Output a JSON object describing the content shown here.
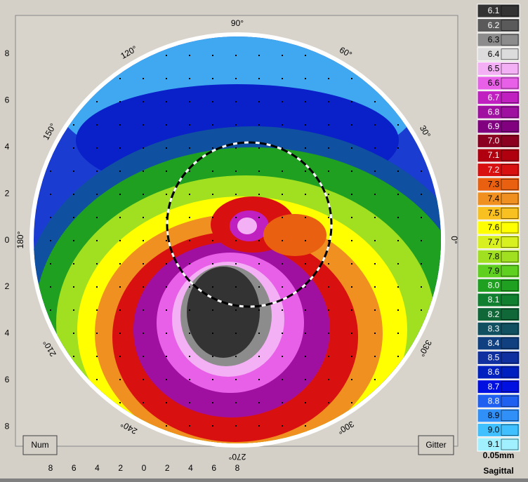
{
  "axes": {
    "x_labels": [
      "8",
      "6",
      "4",
      "2",
      "0",
      "2",
      "4",
      "6",
      "8"
    ],
    "y_labels": [
      "8",
      "6",
      "4",
      "2",
      "0",
      "2",
      "4",
      "6",
      "8"
    ]
  },
  "angles": [
    "90°",
    "60°",
    "30°",
    "0°",
    "330°",
    "300°",
    "270°",
    "240°",
    "210°",
    "180°",
    "150°",
    "120°"
  ],
  "legend": {
    "entries": [
      {
        "label": "6.1",
        "color": "#333333"
      },
      {
        "label": "6.2",
        "color": "#5a5a5a"
      },
      {
        "label": "6.3",
        "color": "#8c8c8c"
      },
      {
        "label": "6.4",
        "color": "#dcdcdc"
      },
      {
        "label": "6.5",
        "color": "#f4b0f4"
      },
      {
        "label": "6.6",
        "color": "#e860e8"
      },
      {
        "label": "6.7",
        "color": "#c020c0"
      },
      {
        "label": "6.8",
        "color": "#a010a0"
      },
      {
        "label": "6.9",
        "color": "#800080"
      },
      {
        "label": "7.0",
        "color": "#8b0020"
      },
      {
        "label": "7.1",
        "color": "#b00010"
      },
      {
        "label": "7.2",
        "color": "#d81010"
      },
      {
        "label": "7.3",
        "color": "#e86010"
      },
      {
        "label": "7.4",
        "color": "#f09020"
      },
      {
        "label": "7.5",
        "color": "#f8c020"
      },
      {
        "label": "7.6",
        "color": "#ffff00"
      },
      {
        "label": "7.7",
        "color": "#d8f020"
      },
      {
        "label": "7.8",
        "color": "#a0e020"
      },
      {
        "label": "7.9",
        "color": "#60d020"
      },
      {
        "label": "8.0",
        "color": "#20a020"
      },
      {
        "label": "8.1",
        "color": "#108030"
      },
      {
        "label": "8.2",
        "color": "#106838"
      },
      {
        "label": "8.3",
        "color": "#105060"
      },
      {
        "label": "8.4",
        "color": "#104080"
      },
      {
        "label": "8.5",
        "color": "#1030a0"
      },
      {
        "label": "8.6",
        "color": "#0020c0"
      },
      {
        "label": "8.7",
        "color": "#0010e0"
      },
      {
        "label": "8.8",
        "color": "#2060f0"
      },
      {
        "label": "8.9",
        "color": "#3090f8"
      },
      {
        "label": "9.0",
        "color": "#40c0ff"
      },
      {
        "label": "9.1",
        "color": "#a0f0ff"
      }
    ],
    "step": "0.05mm",
    "mode": "Sagittal"
  },
  "buttons": [
    "Num",
    "Gitter"
  ]
}
